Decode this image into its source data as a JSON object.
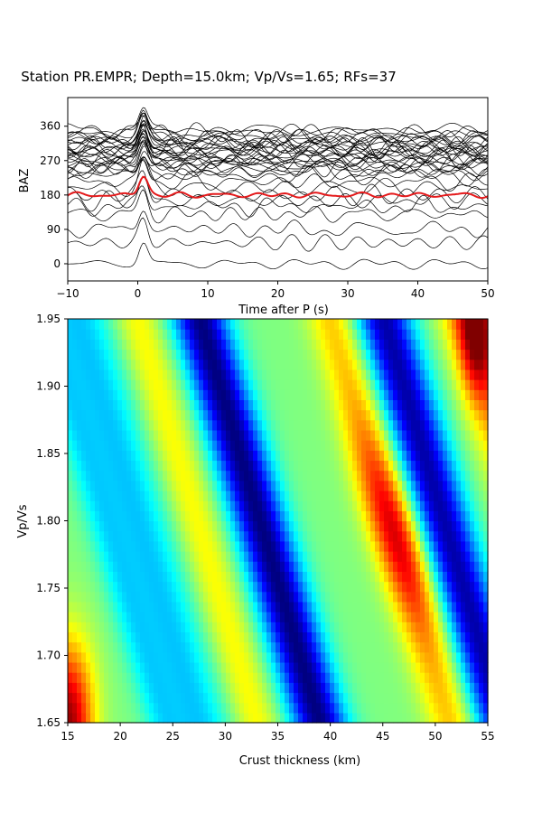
{
  "title": "Station PR.EMPR; Depth=15.0km; Vp/Vs=1.65; RFs=37",
  "colors": {
    "stack": "#e41a1c",
    "traces": "#000000"
  },
  "chart_data": [
    {
      "type": "line",
      "xlabel": "Time after P (s)",
      "ylabel": "BAZ",
      "xlim": [
        -10,
        50
      ],
      "ylim": [
        -45,
        435
      ],
      "xticks": [
        "−10",
        "0",
        "10",
        "20",
        "30",
        "40",
        "50"
      ],
      "xtick_values": [
        -10,
        0,
        10,
        20,
        30,
        40,
        50
      ],
      "yticks": [
        "0",
        "90",
        "180",
        "270",
        "360"
      ],
      "ytick_values": [
        0,
        90,
        180,
        270,
        360
      ],
      "series_count": 37,
      "baz_offsets": [
        0,
        55,
        90,
        130,
        150,
        165,
        180,
        200,
        215,
        230,
        240,
        245,
        250,
        255,
        260,
        265,
        268,
        272,
        276,
        280,
        285,
        288,
        292,
        296,
        300,
        303,
        306,
        310,
        314,
        318,
        322,
        326,
        330,
        335,
        340,
        345,
        350
      ],
      "stack_baz": 180,
      "peak_time": 0.8
    },
    {
      "type": "heatmap",
      "xlabel": "Crust thickness (km)",
      "ylabel": "Vp/Vs",
      "xlim": [
        15,
        55
      ],
      "ylim": [
        1.65,
        1.95
      ],
      "xticks": [
        "15",
        "20",
        "25",
        "30",
        "35",
        "40",
        "45",
        "50",
        "55"
      ],
      "xtick_values": [
        15,
        20,
        25,
        30,
        35,
        40,
        45,
        50,
        55
      ],
      "yticks": [
        "1.65",
        "1.70",
        "1.75",
        "1.80",
        "1.85",
        "1.90",
        "1.95"
      ],
      "ytick_values": [
        1.65,
        1.7,
        1.75,
        1.8,
        1.85,
        1.9,
        1.95
      ],
      "colormap": "jet",
      "maximum": {
        "thickness": 15.0,
        "vpvs": 1.65
      }
    }
  ]
}
